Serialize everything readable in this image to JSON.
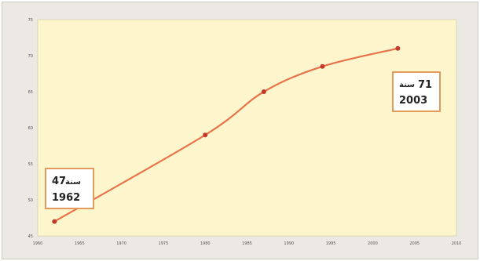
{
  "chart_data": {
    "type": "line",
    "title": "",
    "xlabel": "",
    "ylabel": "",
    "xlim": [
      1960,
      2010
    ],
    "ylim": [
      45,
      75
    ],
    "x_ticks": [
      1960,
      1965,
      1970,
      1975,
      1980,
      1985,
      1990,
      1995,
      2000,
      2005,
      2010
    ],
    "y_ticks": [
      45,
      50,
      55,
      60,
      65,
      70,
      75
    ],
    "grid": false,
    "colors": {
      "plot_bg": "#fdf6cc",
      "frame_bg": "#ece9e4",
      "line": "#e8734a",
      "marker": "#c0392b",
      "annotation_border": "#e39a5a"
    },
    "series": [
      {
        "points": [
          {
            "x": 1962,
            "y": 47.0
          },
          {
            "x": 1980,
            "y": 59.0
          },
          {
            "x": 1987,
            "y": 65.0
          },
          {
            "x": 1994,
            "y": 68.5
          },
          {
            "x": 2003,
            "y": 71.0
          }
        ]
      }
    ],
    "annotations": [
      {
        "year": "1962",
        "value": "47",
        "unit": "سنة"
      },
      {
        "year": "2003",
        "value": "71",
        "unit": "سنة"
      }
    ]
  }
}
